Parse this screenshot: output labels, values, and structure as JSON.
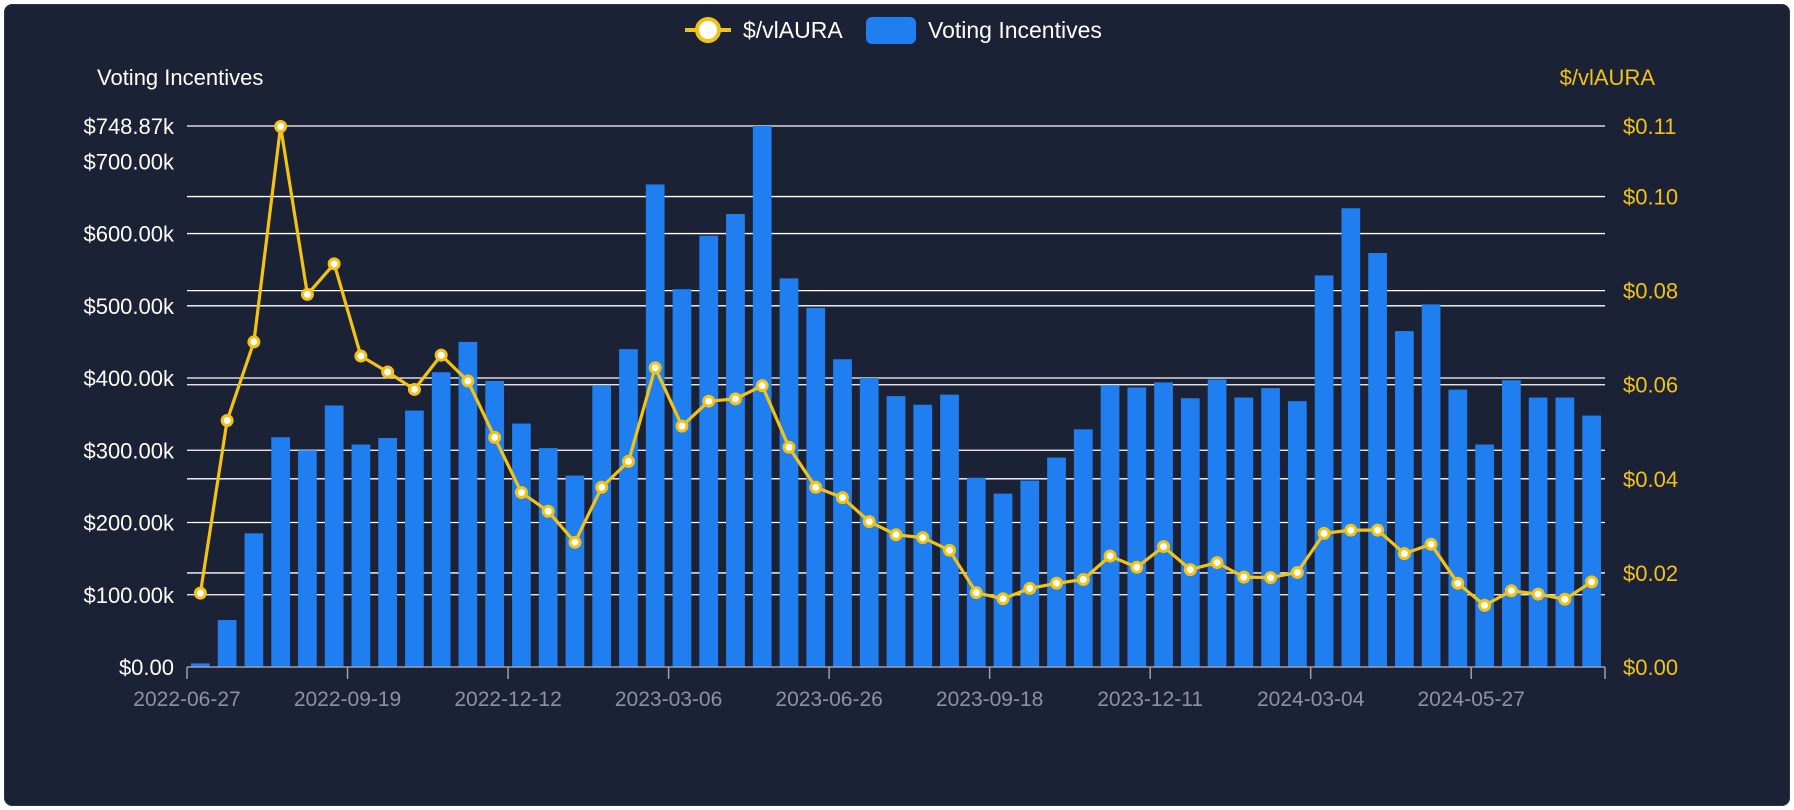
{
  "colors": {
    "background": "#1b2236",
    "bar": "#1f7ff0",
    "line": "#f2c315",
    "grid": "#ffffff",
    "axis": "#9aa0b0",
    "xtick": "#8d92a3"
  },
  "chart_data": {
    "type": "bar",
    "title": "",
    "legend": {
      "placement": "top-center",
      "line_label": "$/vlAURA",
      "bar_label": "Voting Incentives"
    },
    "left_axis": {
      "title": "Voting Incentives",
      "range": [
        0,
        748870
      ],
      "ticks": [
        {
          "value": 0,
          "label": "$0.00"
        },
        {
          "value": 100000,
          "label": "$100.00k"
        },
        {
          "value": 200000,
          "label": "$200.00k"
        },
        {
          "value": 300000,
          "label": "$300.00k"
        },
        {
          "value": 400000,
          "label": "$400.00k"
        },
        {
          "value": 500000,
          "label": "$500.00k"
        },
        {
          "value": 600000,
          "label": "$600.00k"
        },
        {
          "value": 700000,
          "label": "$700.00k"
        },
        {
          "value": 748870,
          "label": "$748.87k"
        }
      ]
    },
    "right_axis": {
      "title": "$/vlAURA",
      "range": [
        0,
        0.115
      ],
      "ticks": [
        {
          "value": 0,
          "label": "$0.00"
        },
        {
          "value": 0.02,
          "label": "$0.02"
        },
        {
          "value": 0.04,
          "label": "$0.04"
        },
        {
          "value": 0.06,
          "label": "$0.06"
        },
        {
          "value": 0.08,
          "label": "$0.08"
        },
        {
          "value": 0.1,
          "label": "$0.10"
        },
        {
          "value": 0.115,
          "label": "$0.11"
        }
      ]
    },
    "x_ticks": [
      "2022-06-27",
      "2022-09-19",
      "2022-12-12",
      "2023-03-06",
      "2023-06-26",
      "2023-09-18",
      "2023-12-11",
      "2024-03-04",
      "2024-05-27"
    ],
    "x_tick_every": 6,
    "series": [
      {
        "name": "Voting Incentives",
        "type": "bar",
        "axis": "left",
        "values": [
          5000,
          65000,
          185000,
          318000,
          300000,
          362000,
          308000,
          317000,
          355000,
          408000,
          450000,
          396000,
          337000,
          303000,
          265000,
          390000,
          440000,
          668000,
          523000,
          597000,
          627000,
          748870,
          538000,
          497000,
          426000,
          400000,
          375000,
          363000,
          377000,
          262000,
          240000,
          258000,
          290000,
          329000,
          390000,
          387000,
          394000,
          372000,
          398000,
          373000,
          386000,
          368000,
          542000,
          635000,
          573000,
          465000,
          502000,
          384000,
          308000,
          397000,
          373000,
          373000,
          348000
        ]
      },
      {
        "name": "$/vlAURA",
        "type": "line",
        "axis": "right",
        "values": [
          0.0157,
          0.0524,
          0.0691,
          0.1149,
          0.0792,
          0.0857,
          0.0661,
          0.0627,
          0.059,
          0.0663,
          0.0608,
          0.0488,
          0.0371,
          0.0331,
          0.0265,
          0.0382,
          0.0437,
          0.0636,
          0.0512,
          0.0565,
          0.057,
          0.0598,
          0.0467,
          0.0382,
          0.036,
          0.0309,
          0.0281,
          0.0275,
          0.0248,
          0.0158,
          0.0145,
          0.0167,
          0.0178,
          0.0186,
          0.0236,
          0.0212,
          0.0256,
          0.0207,
          0.0222,
          0.0191,
          0.019,
          0.0201,
          0.0284,
          0.0291,
          0.0291,
          0.0241,
          0.0261,
          0.0178,
          0.0131,
          0.0162,
          0.0155,
          0.0144,
          0.0181
        ]
      }
    ]
  }
}
